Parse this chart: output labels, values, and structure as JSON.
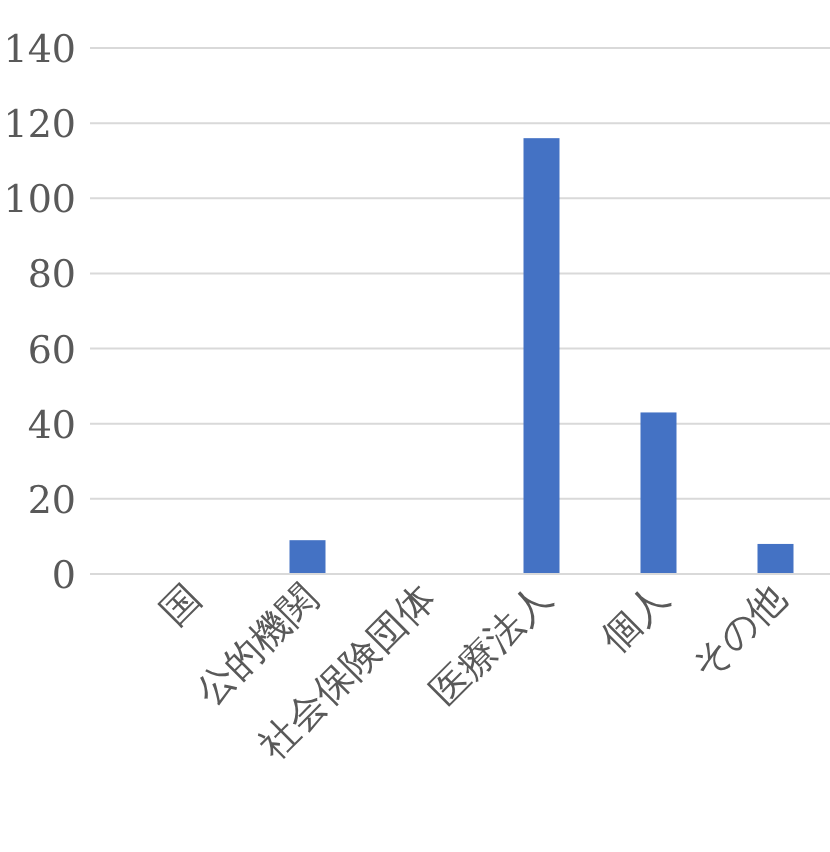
{
  "chart_data": {
    "type": "bar",
    "categories": [
      "国",
      "公的機関",
      "社会保険団体",
      "医療法人",
      "個人",
      "その他"
    ],
    "values": [
      0,
      9,
      0,
      116,
      43,
      8
    ],
    "color": "#4472c4",
    "ylim": [
      0,
      140
    ],
    "yticks": [
      0,
      20,
      40,
      60,
      80,
      100,
      120,
      140
    ],
    "grid": "y"
  }
}
